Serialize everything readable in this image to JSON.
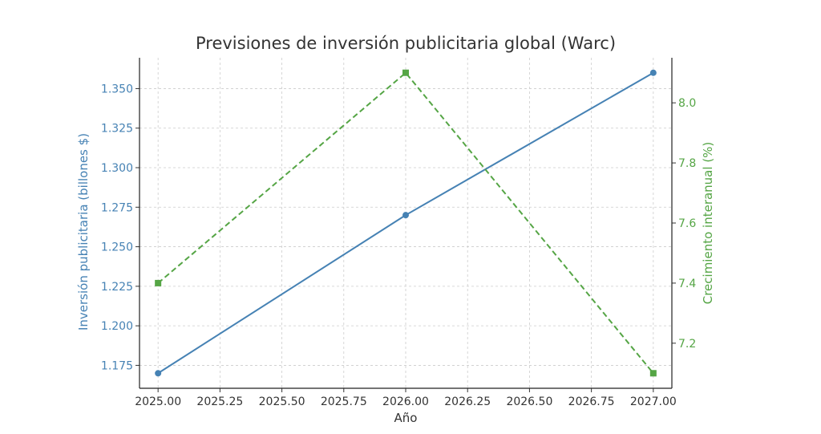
{
  "chart_data": {
    "type": "line",
    "title": "Previsiones de inversión publicitaria global (Warc)",
    "xlabel": "Año",
    "x": [
      2025,
      2026,
      2027
    ],
    "xlim": [
      2024.925,
      2027.075
    ],
    "xticks": [
      "2025.00",
      "2025.25",
      "2025.50",
      "2025.75",
      "2026.00",
      "2026.25",
      "2026.50",
      "2026.75",
      "2027.00"
    ],
    "y_left": {
      "label": "Inversión publicitaria (billones $)",
      "color": "#4682b4",
      "ylim": [
        1.1605,
        1.3695
      ],
      "ticks": [
        "1.175",
        "1.200",
        "1.225",
        "1.250",
        "1.275",
        "1.300",
        "1.325",
        "1.350"
      ]
    },
    "y_right": {
      "label": "Crecimiento interanual (%)",
      "color": "#55a545",
      "ylim": [
        7.05,
        8.15
      ],
      "ticks": [
        "7.2",
        "7.4",
        "7.6",
        "7.8",
        "8.0"
      ]
    },
    "series": [
      {
        "axis": "left",
        "values": [
          1.17,
          1.27,
          1.36
        ],
        "color": "#4682b4",
        "marker": "circle",
        "line_style": "solid"
      },
      {
        "axis": "right",
        "values": [
          7.4,
          8.1,
          7.1
        ],
        "color": "#55a545",
        "marker": "square",
        "line_style": "dashed"
      }
    ],
    "grid": true,
    "legend": "none"
  }
}
